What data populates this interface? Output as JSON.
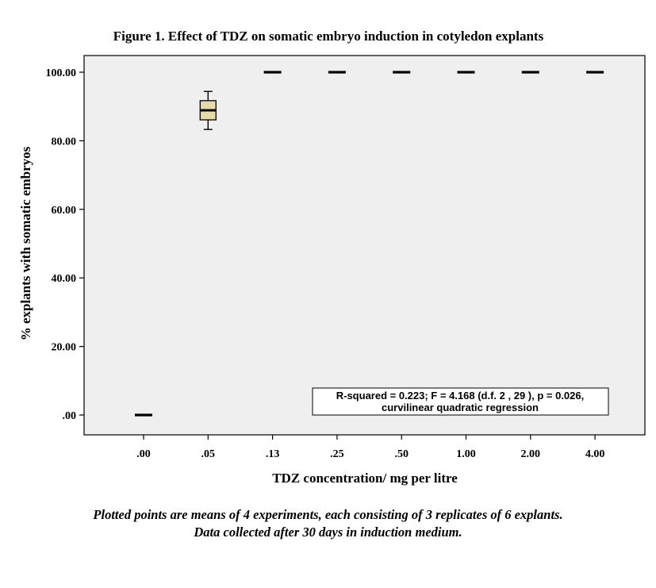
{
  "chart_data": {
    "type": "boxplot",
    "title": "Figure 1. Effect of TDZ on somatic embryo induction in cotyledon explants",
    "xlabel": "TDZ concentration/ mg per litre",
    "ylabel": "% explants with somatic embryos",
    "categories": [
      ".00",
      ".05",
      ".13",
      ".25",
      ".50",
      "1.00",
      "2.00",
      "4.00"
    ],
    "ylim": [
      -5,
      106
    ],
    "yticks": [
      0,
      20,
      40,
      60,
      80,
      100
    ],
    "ytick_labels": [
      ".00",
      "20.00",
      "40.00",
      "60.00",
      "80.00",
      "100.00"
    ],
    "boxes": [
      {
        "category": ".00",
        "min": 0,
        "q1": 0,
        "median": 0,
        "q3": 0,
        "max": 0
      },
      {
        "category": ".05",
        "min": 83.3,
        "q1": 86.1,
        "median": 88.9,
        "q3": 91.7,
        "max": 94.4
      },
      {
        "category": ".13",
        "min": 100,
        "q1": 100,
        "median": 100,
        "q3": 100,
        "max": 100
      },
      {
        "category": ".25",
        "min": 100,
        "q1": 100,
        "median": 100,
        "q3": 100,
        "max": 100
      },
      {
        "category": ".50",
        "min": 100,
        "q1": 100,
        "median": 100,
        "q3": 100,
        "max": 100
      },
      {
        "category": "1.00",
        "min": 100,
        "q1": 100,
        "median": 100,
        "q3": 100,
        "max": 100
      },
      {
        "category": "2.00",
        "min": 100,
        "q1": 100,
        "median": 100,
        "q3": 100,
        "max": 100
      },
      {
        "category": "4.00",
        "min": 100,
        "q1": 100,
        "median": 100,
        "q3": 100,
        "max": 100
      }
    ],
    "annotation": {
      "lines": [
        "R-squared = 0.223; F = 4.168 (d.f. 2 , 29 ), p = 0.026,",
        "curvilinear quadratic regression"
      ],
      "placement": "bottom-right"
    },
    "grid": false,
    "legend": "none",
    "plot_background": "#efefef",
    "box_fill": "#e6dba8"
  },
  "footnote": {
    "line1": "Plotted points are means  of  4 experiments, each  consisting of 3 replicates of 6 explants.",
    "line2": "Data collected after 30 days in induction medium."
  }
}
